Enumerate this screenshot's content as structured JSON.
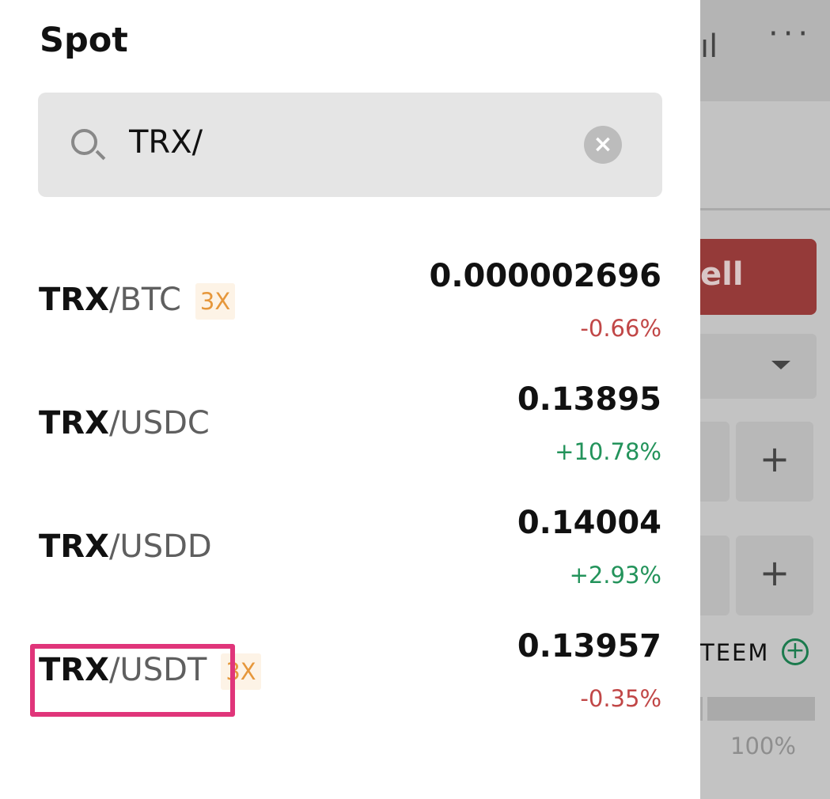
{
  "title": "Spot",
  "search": {
    "value": "TRX/"
  },
  "pairs": [
    {
      "base": "TRX",
      "quote": "/BTC",
      "leverage": "3X",
      "price": "0.000002696",
      "change": "-0.66%",
      "direction": "neg"
    },
    {
      "base": "TRX",
      "quote": "/USDC",
      "leverage": "",
      "price": "0.13895",
      "change": "+10.78%",
      "direction": "pos"
    },
    {
      "base": "TRX",
      "quote": "/USDD",
      "leverage": "",
      "price": "0.14004",
      "change": "+2.93%",
      "direction": "pos"
    },
    {
      "base": "TRX",
      "quote": "/USDT",
      "leverage": "3X",
      "price": "0.13957",
      "change": "-0.35%",
      "direction": "neg"
    }
  ],
  "background": {
    "sell_label": "ell",
    "asset_label": "TEEM",
    "percent_label": "100%",
    "more": "···"
  },
  "colors": {
    "negative": "#c14747",
    "positive": "#23935b",
    "leverage": "#e6973b",
    "highlight": "#e0357a",
    "sell": "#953a39"
  }
}
